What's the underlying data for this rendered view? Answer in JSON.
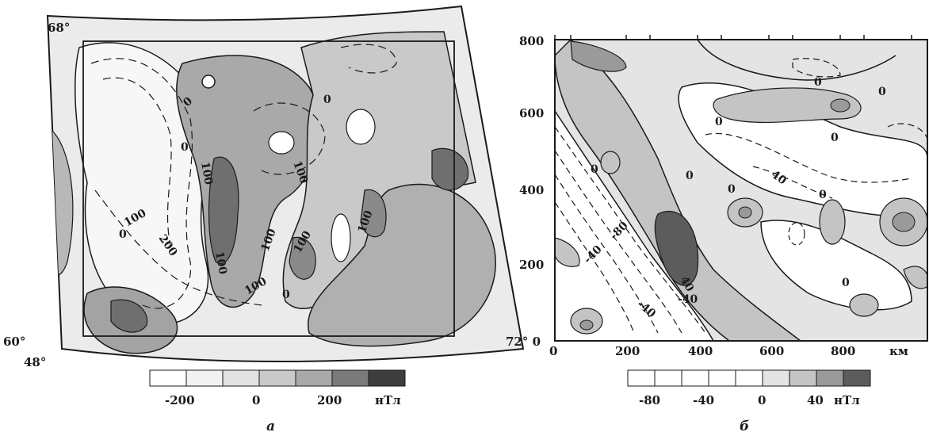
{
  "panel_a": {
    "lat_top": "68°",
    "lat_bottom": "60°",
    "lon_left": "48°",
    "contour_labels": [
      "0",
      "0",
      "0",
      "100",
      "100",
      "100",
      "100",
      "100",
      "100",
      "100",
      "100",
      "200",
      "0",
      "0"
    ],
    "legend": {
      "ticks": [
        "-200",
        "0",
        "200"
      ],
      "unit": "нТл",
      "colors": [
        "#ffffff",
        "#f2f2f2",
        "#e2e2e2",
        "#c9c9c9",
        "#a9a9a9",
        "#7a7a7a",
        "#3d3d3d"
      ]
    },
    "caption": "а"
  },
  "panel_b": {
    "y_ticks": [
      "800",
      "600",
      "400",
      "200"
    ],
    "x_ticks": [
      "0",
      "200",
      "400",
      "600",
      "800"
    ],
    "corner_label": "72° 0",
    "x_unit": "км",
    "contour_labels": [
      "0",
      "0",
      "0",
      "0",
      "0",
      "0",
      "0",
      "40",
      "0",
      "0",
      "40",
      "-80",
      "-40",
      "-40",
      "-40"
    ],
    "legend": {
      "ticks": [
        "-80",
        "-40",
        "0",
        "40"
      ],
      "unit": "нТл",
      "colors": [
        "#ffffff",
        "#ffffff",
        "#ffffff",
        "#ffffff",
        "#ffffff",
        "#e4e4e4",
        "#c4c4c4",
        "#9a9a9a",
        "#5c5c5c"
      ]
    },
    "caption": "б"
  }
}
